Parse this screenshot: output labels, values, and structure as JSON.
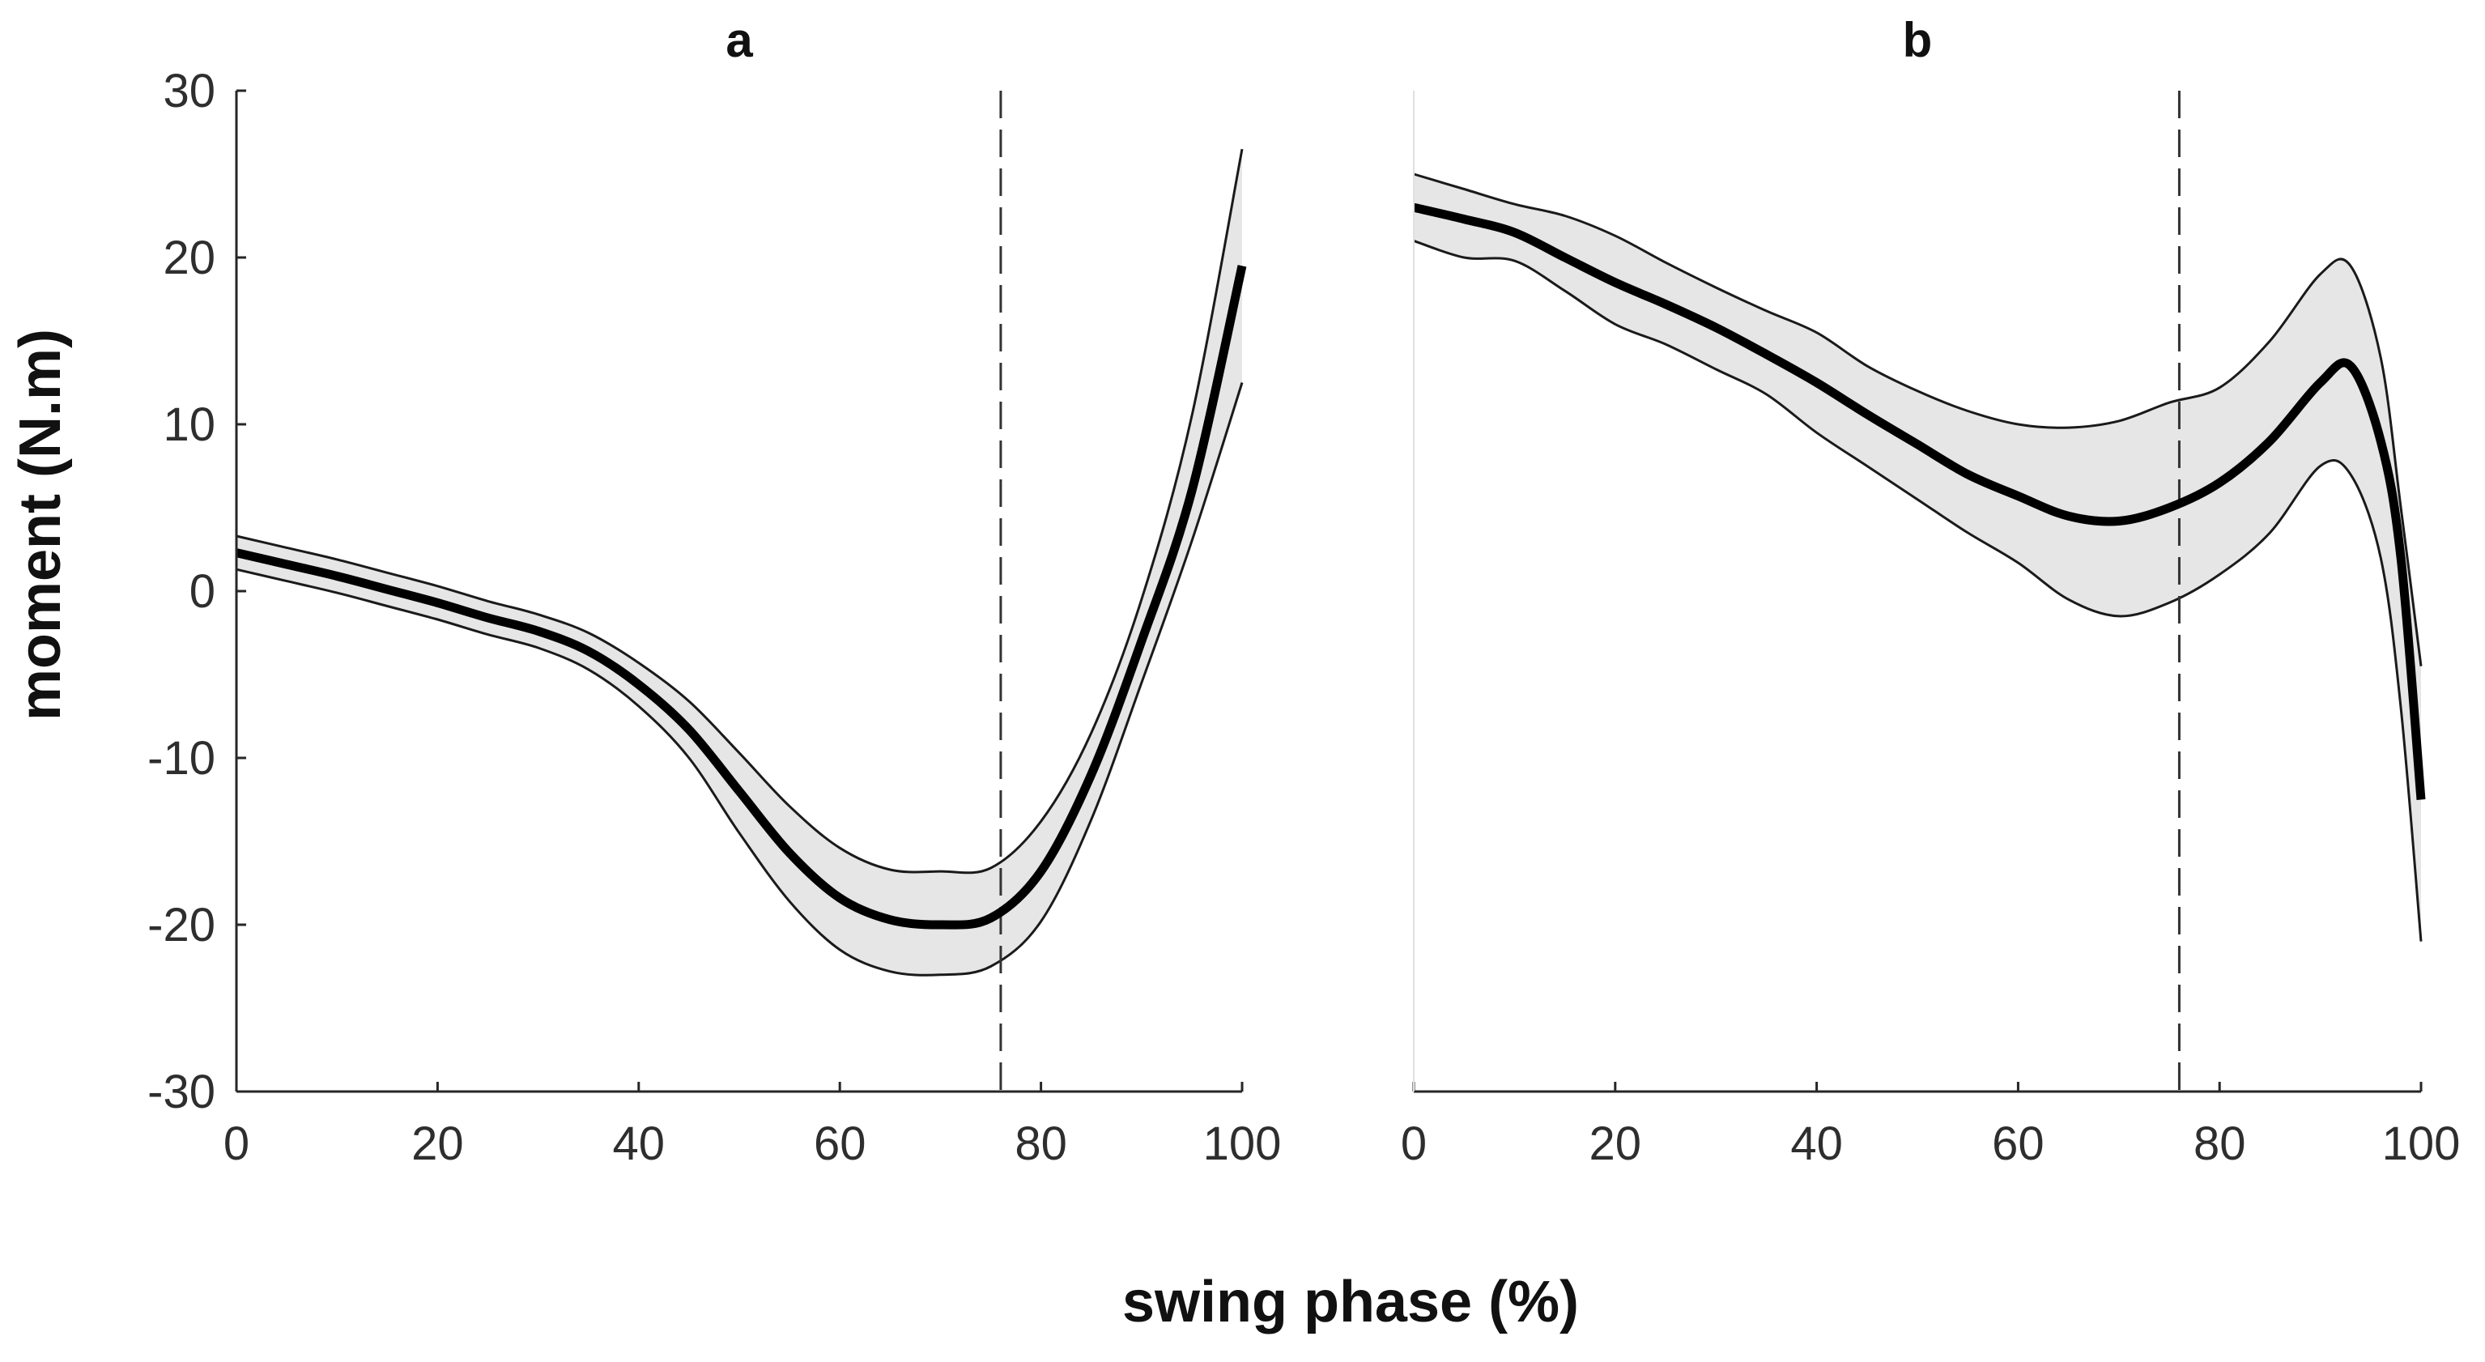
{
  "figure": {
    "xlabel": "swing phase (%)",
    "ylabel": "moment (N.m)"
  },
  "chart_data": [
    {
      "type": "line",
      "title": "a",
      "xlabel": "swing phase (%)",
      "ylabel": "moment (N.m)",
      "xlim": [
        0,
        100
      ],
      "ylim": [
        -30,
        30
      ],
      "xticks": [
        0,
        20,
        40,
        60,
        80,
        100
      ],
      "yticks": [
        30,
        20,
        10,
        0,
        -10,
        -20,
        -30
      ],
      "show_y_axis": true,
      "grid": false,
      "reference_line_x": 76,
      "x": [
        0,
        5,
        10,
        15,
        20,
        25,
        30,
        35,
        40,
        45,
        50,
        55,
        60,
        65,
        70,
        75,
        80,
        85,
        90,
        95,
        100
      ],
      "series": [
        {
          "name": "mean",
          "values": [
            2.3,
            1.6,
            0.9,
            0.1,
            -0.7,
            -1.6,
            -2.4,
            -3.6,
            -5.6,
            -8.3,
            -12.0,
            -15.7,
            -18.4,
            -19.7,
            -20.0,
            -19.6,
            -16.8,
            -11.0,
            -3.0,
            6.0,
            19.5
          ]
        },
        {
          "name": "upper",
          "values": [
            3.3,
            2.6,
            1.9,
            1.1,
            0.3,
            -0.6,
            -1.4,
            -2.5,
            -4.3,
            -6.6,
            -9.7,
            -12.9,
            -15.4,
            -16.7,
            -16.8,
            -16.6,
            -13.8,
            -8.5,
            -0.5,
            10.5,
            26.5
          ]
        },
        {
          "name": "lower",
          "values": [
            1.3,
            0.6,
            -0.1,
            -0.9,
            -1.7,
            -2.6,
            -3.4,
            -4.7,
            -6.9,
            -10.0,
            -14.5,
            -18.6,
            -21.5,
            -22.8,
            -23.0,
            -22.5,
            -19.8,
            -13.7,
            -5.5,
            3.0,
            12.5
          ]
        }
      ]
    },
    {
      "type": "line",
      "title": "b",
      "xlabel": "swing phase (%)",
      "ylabel": "moment (N.m)",
      "xlim": [
        0,
        100
      ],
      "ylim": [
        -30,
        30
      ],
      "xticks": [
        0,
        20,
        40,
        60,
        80,
        100
      ],
      "yticks": [
        30,
        20,
        10,
        0,
        -10,
        -20,
        -30
      ],
      "show_y_axis": false,
      "grid": false,
      "reference_line_x": 76,
      "x": [
        0,
        5,
        10,
        15,
        20,
        25,
        30,
        35,
        40,
        45,
        50,
        55,
        60,
        65,
        70,
        75,
        80,
        85,
        90,
        93,
        96,
        98,
        100
      ],
      "series": [
        {
          "name": "mean",
          "values": [
            23.0,
            22.3,
            21.5,
            20.0,
            18.5,
            17.2,
            15.8,
            14.2,
            12.5,
            10.6,
            8.8,
            7.0,
            5.7,
            4.5,
            4.2,
            5.0,
            6.5,
            9.0,
            12.5,
            13.5,
            9.0,
            2.0,
            -12.5
          ]
        },
        {
          "name": "upper",
          "values": [
            25.0,
            24.1,
            23.2,
            22.5,
            21.3,
            19.7,
            18.2,
            16.8,
            15.5,
            13.5,
            12.0,
            10.8,
            10.0,
            9.8,
            10.2,
            11.3,
            12.2,
            15.0,
            19.0,
            19.5,
            14.0,
            5.0,
            -4.5
          ]
        },
        {
          "name": "lower",
          "values": [
            21.0,
            20.0,
            19.8,
            18.0,
            16.0,
            14.8,
            13.3,
            11.8,
            9.5,
            7.5,
            5.5,
            3.5,
            1.7,
            -0.5,
            -1.5,
            -0.7,
            1.0,
            3.5,
            7.5,
            7.0,
            2.0,
            -7.0,
            -21.0
          ]
        }
      ]
    }
  ]
}
